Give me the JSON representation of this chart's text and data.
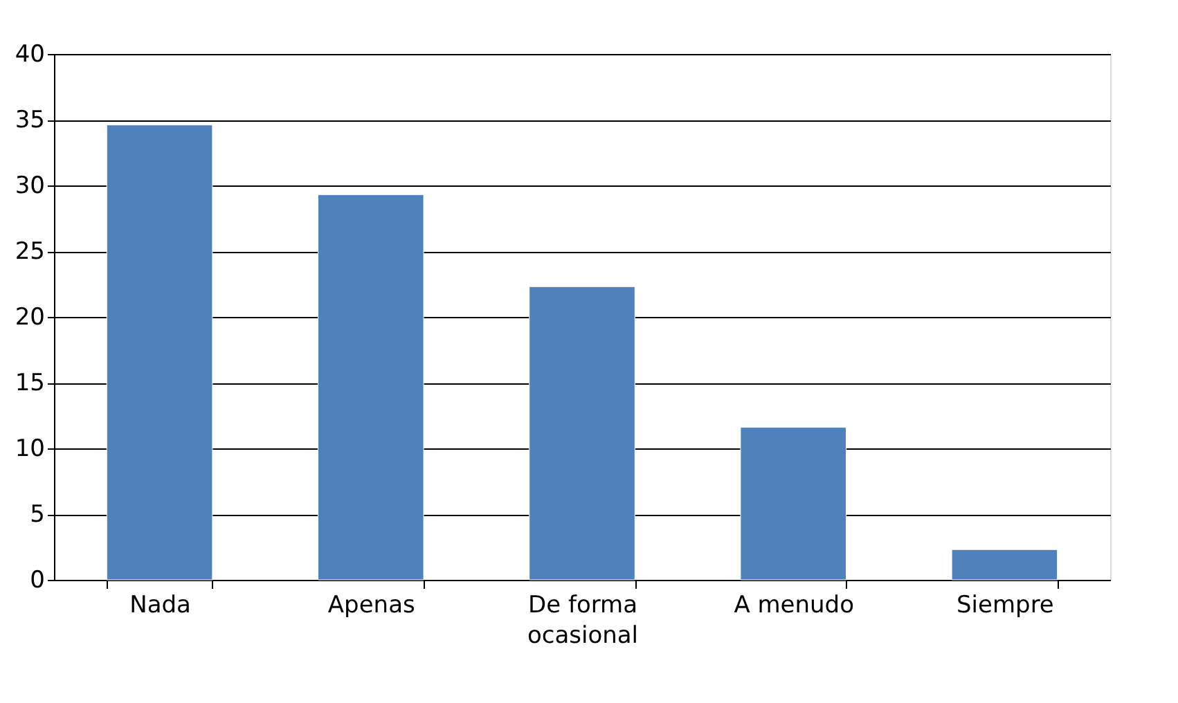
{
  "chart_data": {
    "type": "bar",
    "categories": [
      "Nada",
      "Apenas",
      "De forma ocasional",
      "A menudo",
      "Siempre"
    ],
    "values": [
      34.6,
      29.3,
      22.3,
      11.6,
      2.3
    ],
    "color": "#4f81bd",
    "ylim": [
      0,
      40
    ],
    "yticks": [
      0,
      5,
      10,
      15,
      20,
      25,
      30,
      35,
      40
    ],
    "grid": "y"
  }
}
